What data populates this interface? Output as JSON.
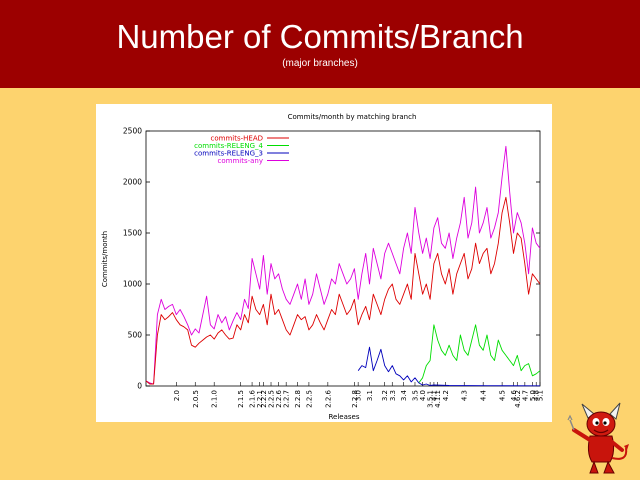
{
  "slide": {
    "title": "Number of Commits/Branch",
    "subtitle": "(major branches)"
  },
  "colors": {
    "header": "#9c0000",
    "background": "#fdd36e",
    "head": "#dd0000",
    "releng4": "#00dd00",
    "releng3": "#0000bb",
    "any": "#dd00dd"
  },
  "mascot": {
    "icon": "bsd-daemon-icon"
  },
  "chart_data": {
    "type": "line",
    "title": "Commits/month by matching branch",
    "xlabel": "Releases",
    "ylabel": "Commits/month",
    "ylim": [
      0,
      2500
    ],
    "yticks": [
      0,
      500,
      1000,
      1500,
      2000,
      2500
    ],
    "grid": false,
    "legend_position": "top-left",
    "xlim": [
      0,
      104
    ],
    "release_ticks": [
      {
        "label": "2.0",
        "x": 8
      },
      {
        "label": "2.0.5",
        "x": 13
      },
      {
        "label": "2.1.0",
        "x": 18
      },
      {
        "label": "2.1.5",
        "x": 25
      },
      {
        "label": "2.1.6",
        "x": 28
      },
      {
        "label": "2.2.1",
        "x": 30
      },
      {
        "label": "2.2.2",
        "x": 31
      },
      {
        "label": "2.2.5",
        "x": 33
      },
      {
        "label": "2.2.6",
        "x": 35
      },
      {
        "label": "2.2.7",
        "x": 37
      },
      {
        "label": "2.2.8",
        "x": 40
      },
      {
        "label": "2.2.5",
        "x": 43
      },
      {
        "label": "2.2.6",
        "x": 48
      },
      {
        "label": "2.2.8",
        "x": 55
      },
      {
        "label": "3.0",
        "x": 56
      },
      {
        "label": "3.1",
        "x": 59
      },
      {
        "label": "3.2",
        "x": 63
      },
      {
        "label": "3.3",
        "x": 65
      },
      {
        "label": "3.4",
        "x": 68
      },
      {
        "label": "3.5",
        "x": 71
      },
      {
        "label": "4.0",
        "x": 73
      },
      {
        "label": "3.5.1",
        "x": 75
      },
      {
        "label": "4.1",
        "x": 76
      },
      {
        "label": "4.1.1",
        "x": 77
      },
      {
        "label": "4.2",
        "x": 79
      },
      {
        "label": "4.3",
        "x": 84
      },
      {
        "label": "4.4",
        "x": 89
      },
      {
        "label": "4.5",
        "x": 94
      },
      {
        "label": "4.6",
        "x": 97
      },
      {
        "label": "4.6.2",
        "x": 98
      },
      {
        "label": "4.7",
        "x": 100
      },
      {
        "label": "5.0",
        "x": 102
      },
      {
        "label": "4.8",
        "x": 103
      },
      {
        "label": "5.1",
        "x": 104
      }
    ],
    "series": [
      {
        "name": "commits-HEAD",
        "color": "#dd0000",
        "points": [
          [
            0,
            50
          ],
          [
            1,
            20
          ],
          [
            2,
            20
          ],
          [
            3,
            500
          ],
          [
            4,
            700
          ],
          [
            5,
            650
          ],
          [
            6,
            680
          ],
          [
            7,
            720
          ],
          [
            8,
            650
          ],
          [
            9,
            600
          ],
          [
            10,
            580
          ],
          [
            11,
            550
          ],
          [
            12,
            400
          ],
          [
            13,
            380
          ],
          [
            14,
            420
          ],
          [
            15,
            450
          ],
          [
            16,
            480
          ],
          [
            17,
            500
          ],
          [
            18,
            460
          ],
          [
            19,
            520
          ],
          [
            20,
            550
          ],
          [
            21,
            500
          ],
          [
            22,
            460
          ],
          [
            23,
            470
          ],
          [
            24,
            600
          ],
          [
            25,
            550
          ],
          [
            26,
            700
          ],
          [
            27,
            620
          ],
          [
            28,
            880
          ],
          [
            29,
            750
          ],
          [
            30,
            700
          ],
          [
            31,
            800
          ],
          [
            32,
            600
          ],
          [
            33,
            900
          ],
          [
            34,
            700
          ],
          [
            35,
            750
          ],
          [
            36,
            650
          ],
          [
            37,
            550
          ],
          [
            38,
            500
          ],
          [
            39,
            600
          ],
          [
            40,
            700
          ],
          [
            41,
            650
          ],
          [
            42,
            680
          ],
          [
            43,
            550
          ],
          [
            44,
            600
          ],
          [
            45,
            700
          ],
          [
            46,
            620
          ],
          [
            47,
            550
          ],
          [
            48,
            650
          ],
          [
            49,
            750
          ],
          [
            50,
            700
          ],
          [
            51,
            900
          ],
          [
            52,
            800
          ],
          [
            53,
            700
          ],
          [
            54,
            750
          ],
          [
            55,
            850
          ],
          [
            56,
            600
          ],
          [
            57,
            700
          ],
          [
            58,
            780
          ],
          [
            59,
            650
          ],
          [
            60,
            900
          ],
          [
            61,
            800
          ],
          [
            62,
            700
          ],
          [
            63,
            850
          ],
          [
            64,
            950
          ],
          [
            65,
            1000
          ],
          [
            66,
            850
          ],
          [
            67,
            800
          ],
          [
            68,
            900
          ],
          [
            69,
            1000
          ],
          [
            70,
            850
          ],
          [
            71,
            1300
          ],
          [
            72,
            1100
          ],
          [
            73,
            900
          ],
          [
            74,
            1000
          ],
          [
            75,
            850
          ],
          [
            76,
            1200
          ],
          [
            77,
            1300
          ],
          [
            78,
            1100
          ],
          [
            79,
            1000
          ],
          [
            80,
            1150
          ],
          [
            81,
            900
          ],
          [
            82,
            1100
          ],
          [
            83,
            1200
          ],
          [
            84,
            1300
          ],
          [
            85,
            1050
          ],
          [
            86,
            1150
          ],
          [
            87,
            1400
          ],
          [
            88,
            1200
          ],
          [
            89,
            1300
          ],
          [
            90,
            1350
          ],
          [
            91,
            1100
          ],
          [
            92,
            1200
          ],
          [
            93,
            1400
          ],
          [
            94,
            1700
          ],
          [
            95,
            1850
          ],
          [
            96,
            1600
          ],
          [
            97,
            1300
          ],
          [
            98,
            1500
          ],
          [
            99,
            1450
          ],
          [
            100,
            1200
          ],
          [
            101,
            900
          ],
          [
            102,
            1100
          ],
          [
            103,
            1050
          ],
          [
            104,
            1000
          ]
        ]
      },
      {
        "name": "commits-RELENG_4",
        "color": "#00dd00",
        "points": [
          [
            72,
            30
          ],
          [
            73,
            80
          ],
          [
            74,
            200
          ],
          [
            75,
            250
          ],
          [
            76,
            600
          ],
          [
            77,
            450
          ],
          [
            78,
            350
          ],
          [
            79,
            300
          ],
          [
            80,
            400
          ],
          [
            81,
            300
          ],
          [
            82,
            250
          ],
          [
            83,
            500
          ],
          [
            84,
            350
          ],
          [
            85,
            300
          ],
          [
            86,
            450
          ],
          [
            87,
            600
          ],
          [
            88,
            400
          ],
          [
            89,
            350
          ],
          [
            90,
            500
          ],
          [
            91,
            300
          ],
          [
            92,
            250
          ],
          [
            93,
            450
          ],
          [
            94,
            350
          ],
          [
            95,
            300
          ],
          [
            96,
            250
          ],
          [
            97,
            200
          ],
          [
            98,
            300
          ],
          [
            99,
            150
          ],
          [
            100,
            200
          ],
          [
            101,
            220
          ],
          [
            102,
            100
          ],
          [
            103,
            120
          ],
          [
            104,
            150
          ]
        ]
      },
      {
        "name": "commits-RELENG_3",
        "color": "#0000bb",
        "points": [
          [
            56,
            150
          ],
          [
            57,
            200
          ],
          [
            58,
            180
          ],
          [
            59,
            380
          ],
          [
            60,
            150
          ],
          [
            61,
            250
          ],
          [
            62,
            360
          ],
          [
            63,
            200
          ],
          [
            64,
            140
          ],
          [
            65,
            200
          ],
          [
            66,
            120
          ],
          [
            67,
            100
          ],
          [
            68,
            60
          ],
          [
            69,
            100
          ],
          [
            70,
            40
          ],
          [
            71,
            80
          ],
          [
            72,
            30
          ],
          [
            73,
            10
          ],
          [
            74,
            20
          ],
          [
            75,
            5
          ],
          [
            76,
            10
          ],
          [
            80,
            5
          ],
          [
            90,
            3
          ],
          [
            104,
            2
          ]
        ]
      },
      {
        "name": "commits-any",
        "color": "#dd00dd",
        "points": [
          [
            0,
            50
          ],
          [
            1,
            30
          ],
          [
            2,
            20
          ],
          [
            3,
            700
          ],
          [
            4,
            850
          ],
          [
            5,
            750
          ],
          [
            6,
            780
          ],
          [
            7,
            800
          ],
          [
            8,
            700
          ],
          [
            9,
            750
          ],
          [
            10,
            680
          ],
          [
            11,
            600
          ],
          [
            12,
            500
          ],
          [
            13,
            560
          ],
          [
            14,
            520
          ],
          [
            15,
            700
          ],
          [
            16,
            880
          ],
          [
            17,
            600
          ],
          [
            18,
            560
          ],
          [
            19,
            700
          ],
          [
            20,
            620
          ],
          [
            21,
            680
          ],
          [
            22,
            550
          ],
          [
            23,
            640
          ],
          [
            24,
            720
          ],
          [
            25,
            650
          ],
          [
            26,
            850
          ],
          [
            27,
            760
          ],
          [
            28,
            1250
          ],
          [
            29,
            1100
          ],
          [
            30,
            950
          ],
          [
            31,
            1280
          ],
          [
            32,
            900
          ],
          [
            33,
            1200
          ],
          [
            34,
            1050
          ],
          [
            35,
            1100
          ],
          [
            36,
            950
          ],
          [
            37,
            850
          ],
          [
            38,
            800
          ],
          [
            39,
            900
          ],
          [
            40,
            1000
          ],
          [
            41,
            850
          ],
          [
            42,
            1050
          ],
          [
            43,
            800
          ],
          [
            44,
            900
          ],
          [
            45,
            1100
          ],
          [
            46,
            950
          ],
          [
            47,
            800
          ],
          [
            48,
            900
          ],
          [
            49,
            1050
          ],
          [
            50,
            1000
          ],
          [
            51,
            1200
          ],
          [
            52,
            1100
          ],
          [
            53,
            1000
          ],
          [
            54,
            1050
          ],
          [
            55,
            1150
          ],
          [
            56,
            850
          ],
          [
            57,
            1100
          ],
          [
            58,
            1300
          ],
          [
            59,
            1000
          ],
          [
            60,
            1350
          ],
          [
            61,
            1200
          ],
          [
            62,
            1050
          ],
          [
            63,
            1300
          ],
          [
            64,
            1400
          ],
          [
            65,
            1300
          ],
          [
            66,
            1200
          ],
          [
            67,
            1100
          ],
          [
            68,
            1350
          ],
          [
            69,
            1500
          ],
          [
            70,
            1300
          ],
          [
            71,
            1750
          ],
          [
            72,
            1500
          ],
          [
            73,
            1300
          ],
          [
            74,
            1450
          ],
          [
            75,
            1250
          ],
          [
            76,
            1550
          ],
          [
            77,
            1650
          ],
          [
            78,
            1400
          ],
          [
            79,
            1350
          ],
          [
            80,
            1500
          ],
          [
            81,
            1250
          ],
          [
            82,
            1450
          ],
          [
            83,
            1600
          ],
          [
            84,
            1850
          ],
          [
            85,
            1450
          ],
          [
            86,
            1600
          ],
          [
            87,
            1950
          ],
          [
            88,
            1500
          ],
          [
            89,
            1600
          ],
          [
            90,
            1750
          ],
          [
            91,
            1450
          ],
          [
            92,
            1550
          ],
          [
            93,
            1700
          ],
          [
            94,
            2050
          ],
          [
            95,
            2350
          ],
          [
            96,
            1900
          ],
          [
            97,
            1500
          ],
          [
            98,
            1700
          ],
          [
            99,
            1600
          ],
          [
            100,
            1400
          ],
          [
            101,
            1100
          ],
          [
            102,
            1550
          ],
          [
            103,
            1400
          ],
          [
            104,
            1350
          ]
        ]
      }
    ]
  }
}
